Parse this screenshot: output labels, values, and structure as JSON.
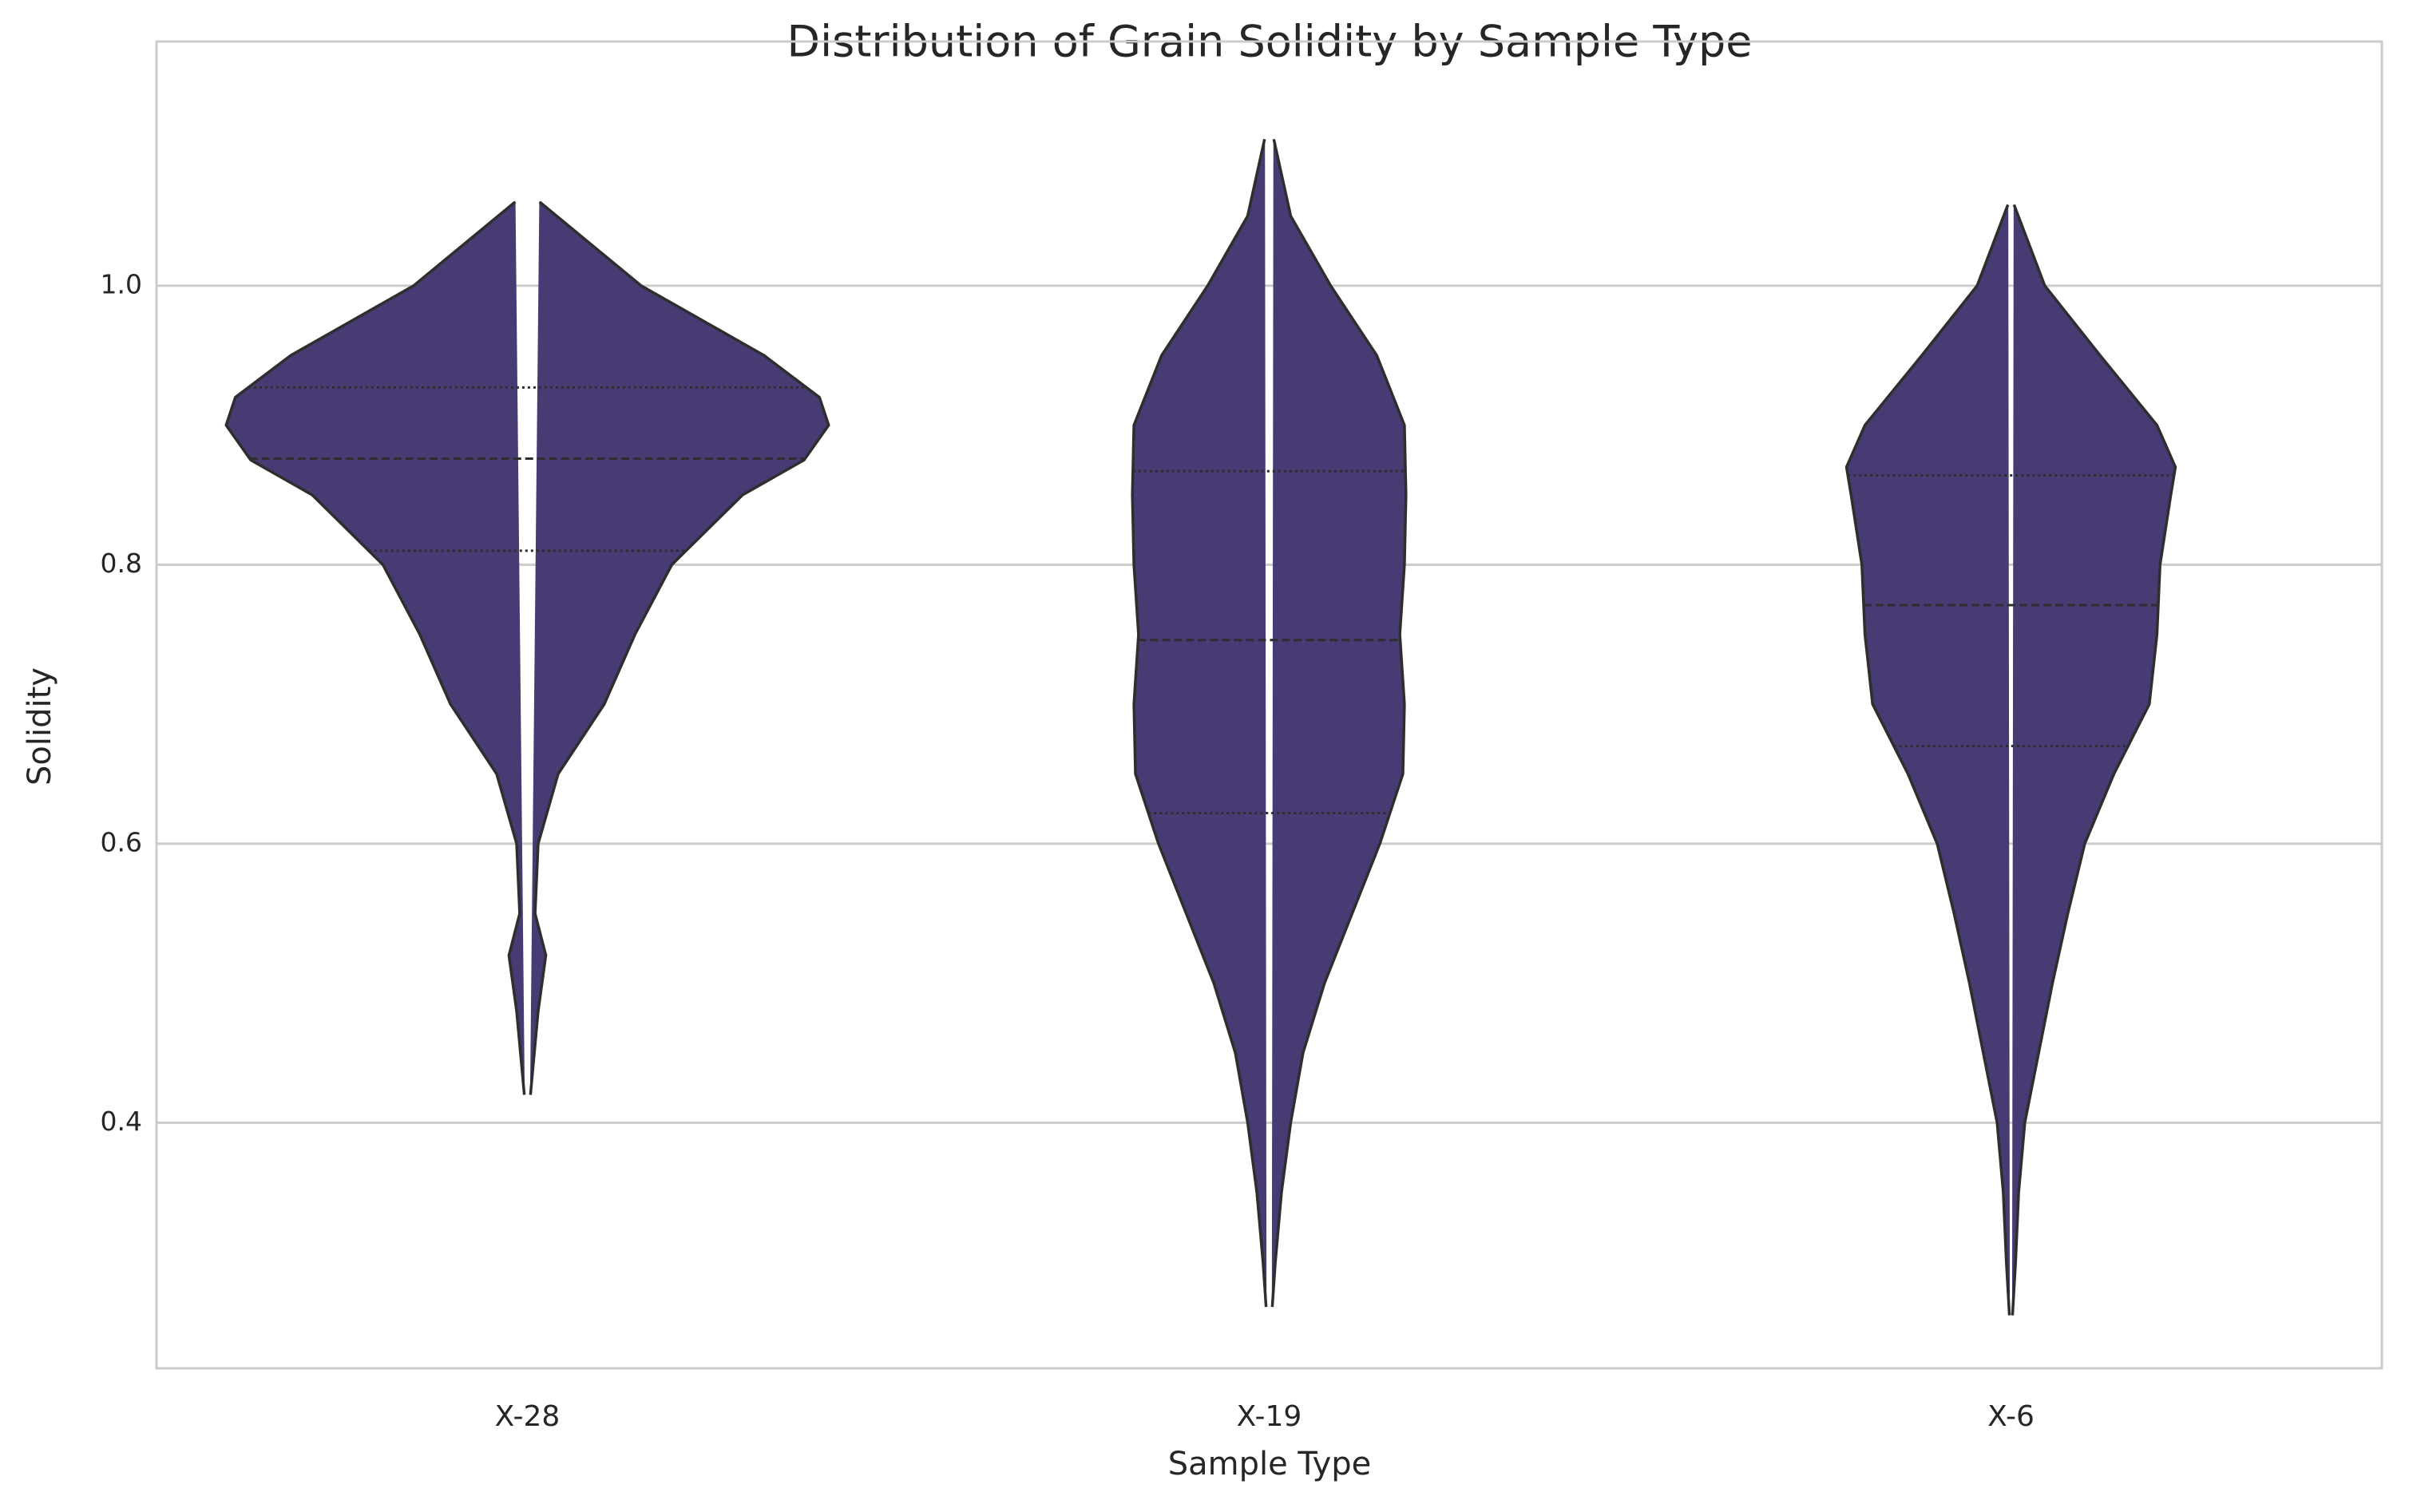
{
  "chart_data": {
    "type": "violin",
    "title": "Distribution of Grain Solidity by Sample Type",
    "xlabel": "Sample Type",
    "ylabel": "Solidity",
    "categories": [
      "X-28",
      "X-19",
      "X-6"
    ],
    "color": "#483a73",
    "edge_color": "#2e2e2e",
    "ylim": [
      0.224,
      1.175
    ],
    "yticks": [
      0.4,
      0.6,
      0.8,
      {
        "value": 1,
        "label": "1.0"
      }
    ],
    "grid": true,
    "violins": [
      {
        "y": [
          1.06,
          1.0,
          0.95,
          0.92,
          0.9,
          0.875,
          0.85,
          0.8,
          0.75,
          0.7,
          0.65,
          0.6,
          0.55,
          0.52,
          0.48,
          0.42
        ],
        "density": [
          0.04,
          0.37,
          0.77,
          0.95,
          0.98,
          0.9,
          0.7,
          0.47,
          0.35,
          0.25,
          0.1,
          0.035,
          0.025,
          0.06,
          0.035,
          0.01
        ],
        "quartiles": [
          0.81,
          0.876,
          0.927
        ]
      },
      {
        "y": [
          1.105,
          1.05,
          1.0,
          0.95,
          0.9,
          0.85,
          0.8,
          0.75,
          0.7,
          0.65,
          0.6,
          0.55,
          0.5,
          0.45,
          0.4,
          0.35,
          0.3,
          0.268
        ],
        "density": [
          0.015,
          0.07,
          0.2,
          0.35,
          0.44,
          0.445,
          0.44,
          0.425,
          0.44,
          0.435,
          0.36,
          0.27,
          0.18,
          0.11,
          0.07,
          0.04,
          0.02,
          0.01
        ],
        "quartiles": [
          0.622,
          0.746,
          0.867
        ]
      },
      {
        "y": [
          1.058,
          1.0,
          0.95,
          0.9,
          0.87,
          0.85,
          0.8,
          0.75,
          0.7,
          0.65,
          0.6,
          0.55,
          0.5,
          0.45,
          0.4,
          0.35,
          0.3,
          0.262
        ],
        "density": [
          0.01,
          0.11,
          0.29,
          0.475,
          0.535,
          0.52,
          0.485,
          0.475,
          0.45,
          0.335,
          0.24,
          0.185,
          0.135,
          0.09,
          0.045,
          0.025,
          0.015,
          0.005
        ],
        "quartiles": [
          0.67,
          0.771,
          0.864
        ]
      }
    ]
  }
}
